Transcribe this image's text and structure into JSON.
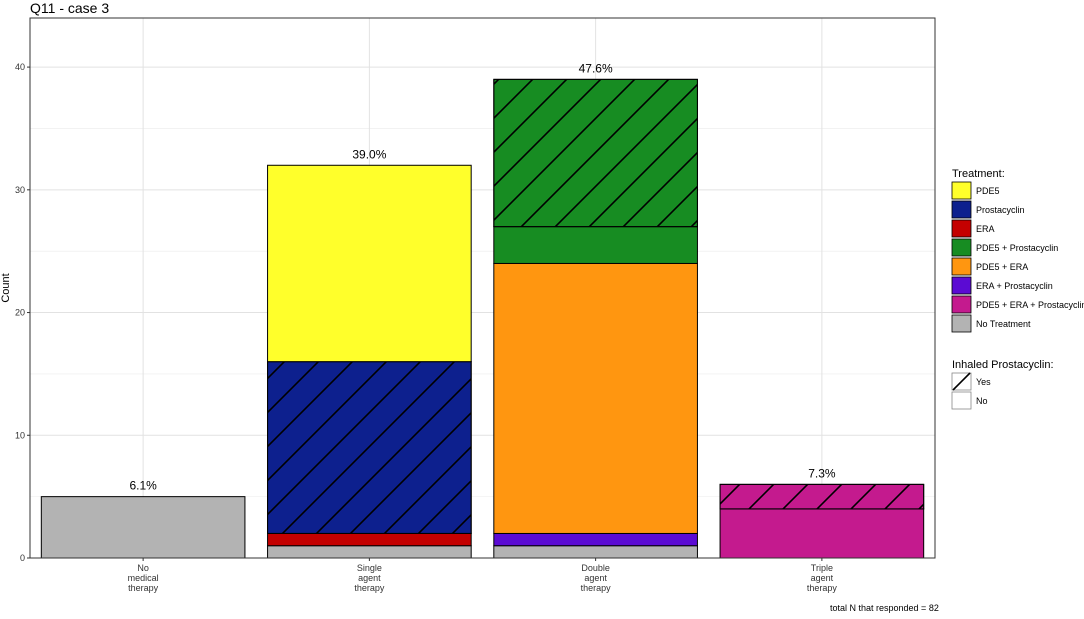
{
  "title": "Q11 - case 3",
  "footnote": "total N that responded = 82",
  "chart_data": {
    "type": "bar",
    "stacked": true,
    "title": "Q11 - case 3",
    "xlabel": "",
    "ylabel": "Count",
    "ylim": [
      0,
      44
    ],
    "yticks": [
      0,
      10,
      20,
      30,
      40
    ],
    "grid": true,
    "legend_position": "right",
    "categories": [
      [
        "No",
        "medical",
        "therapy"
      ],
      [
        "Single",
        "agent",
        "therapy"
      ],
      [
        "Double",
        "agent",
        "therapy"
      ],
      [
        "Triple",
        "agent",
        "therapy"
      ]
    ],
    "percent_labels": [
      "6.1%",
      "39.0%",
      "47.6%",
      "7.3%"
    ],
    "treatment_legend": {
      "title": "Treatment:",
      "items": [
        {
          "name": "PDE5",
          "color": "#ffff2b"
        },
        {
          "name": "Prostacyclin",
          "color": "#0d208e"
        },
        {
          "name": "ERA",
          "color": "#c40000"
        },
        {
          "name": "PDE5 + Prostacyclin",
          "color": "#178c22"
        },
        {
          "name": "PDE5 + ERA",
          "color": "#ff9610"
        },
        {
          "name": "ERA + Prostacyclin",
          "color": "#5b0bd3"
        },
        {
          "name": "PDE5 + ERA + Prostacyclin",
          "color": "#c41a8e"
        },
        {
          "name": "No Treatment",
          "color": "#b3b3b3"
        }
      ]
    },
    "inhaled_legend": {
      "title": "Inhaled Prostacyclin:",
      "items": [
        {
          "name": "Yes",
          "pattern": "stripe"
        },
        {
          "name": "No",
          "pattern": "none"
        }
      ]
    },
    "segments": [
      [
        {
          "treatment": "No Treatment",
          "value": 5,
          "inhaled": "No"
        }
      ],
      [
        {
          "treatment": "No Treatment",
          "value": 1,
          "inhaled": "No"
        },
        {
          "treatment": "ERA",
          "value": 1,
          "inhaled": "No"
        },
        {
          "treatment": "Prostacyclin",
          "value": 14,
          "inhaled": "Yes"
        },
        {
          "treatment": "PDE5",
          "value": 16,
          "inhaled": "No"
        }
      ],
      [
        {
          "treatment": "No Treatment",
          "value": 1,
          "inhaled": "No"
        },
        {
          "treatment": "ERA + Prostacyclin",
          "value": 1,
          "inhaled": "No"
        },
        {
          "treatment": "PDE5 + ERA",
          "value": 22,
          "inhaled": "No"
        },
        {
          "treatment": "PDE5 + Prostacyclin",
          "value": 3,
          "inhaled": "No"
        },
        {
          "treatment": "PDE5 + Prostacyclin",
          "value": 12,
          "inhaled": "Yes"
        }
      ],
      [
        {
          "treatment": "PDE5 + ERA + Prostacyclin",
          "value": 4,
          "inhaled": "No"
        },
        {
          "treatment": "PDE5 + ERA + Prostacyclin",
          "value": 2,
          "inhaled": "Yes"
        }
      ]
    ]
  }
}
